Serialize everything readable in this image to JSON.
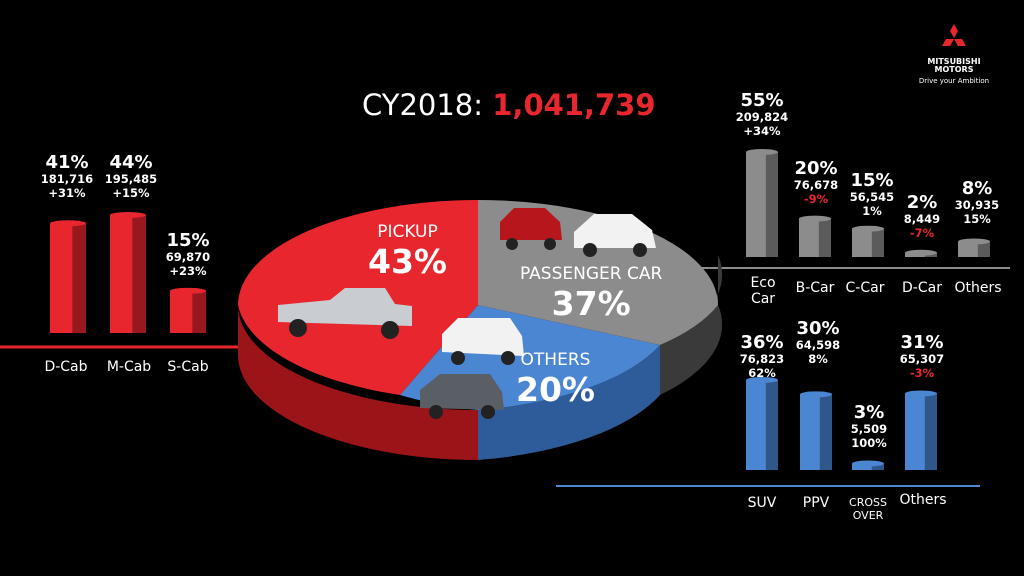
{
  "brand": {
    "name_line1": "MITSUBISHI",
    "name_line2": "MOTORS",
    "tagline": "Drive your Ambition"
  },
  "headline": {
    "label": "CY2018:",
    "total": "1,041,739"
  },
  "colors": {
    "red": "#e8262d",
    "gray": "#8c8c8c",
    "blue": "#4a86d2",
    "negative": "#e8262d"
  },
  "chart_data": [
    {
      "type": "pie",
      "categories": [
        "PICKUP",
        "PASSENGER CAR",
        "OTHERS"
      ],
      "values": [
        43,
        37,
        20
      ],
      "value_labels": [
        "43%",
        "37%",
        "20%"
      ],
      "colors": [
        "#e8262d",
        "#8c8c8c",
        "#4a86d2"
      ]
    },
    {
      "type": "bar",
      "group": "pickup",
      "categories": [
        "D-Cab",
        "M-Cab",
        "S-Cab"
      ],
      "values": [
        181716,
        195485,
        69870
      ],
      "value_labels": [
        "181,716",
        "195,485",
        "69,870"
      ],
      "share": [
        "41%",
        "44%",
        "15%"
      ],
      "change": [
        "+31%",
        "+15%",
        "+23%"
      ],
      "color": "#e8262d"
    },
    {
      "type": "bar",
      "group": "passenger",
      "categories": [
        "Eco Car",
        "B-Car",
        "C-Car",
        "D-Car",
        "Others"
      ],
      "values": [
        209824,
        76678,
        56545,
        8449,
        30935
      ],
      "value_labels": [
        "209,824",
        "76,678",
        "56,545",
        "8,449",
        "30,935"
      ],
      "share": [
        "55%",
        "20%",
        "15%",
        "2%",
        "8%"
      ],
      "change": [
        "+34%",
        "-9%",
        "1%",
        "-7%",
        "15%"
      ],
      "color": "#8c8c8c"
    },
    {
      "type": "bar",
      "group": "others",
      "categories": [
        "SUV",
        "PPV",
        "CROSS OVER",
        "Others"
      ],
      "values": [
        76823,
        64598,
        5509,
        65307
      ],
      "value_labels": [
        "76,823",
        "64,598",
        "5,509",
        "65,307"
      ],
      "share": [
        "36%",
        "30%",
        "3%",
        "31%"
      ],
      "change": [
        "62%",
        "8%",
        "100%",
        "-3%"
      ],
      "color": "#4a86d2"
    }
  ]
}
